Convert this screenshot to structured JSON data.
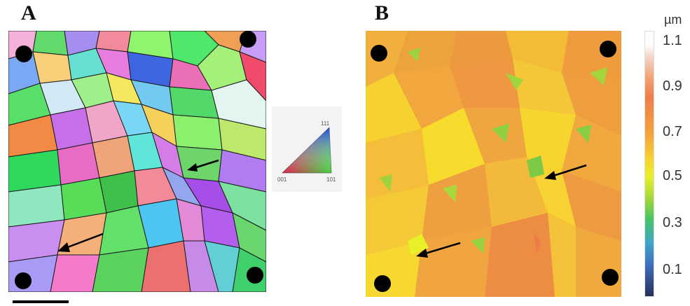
{
  "panels": {
    "a": {
      "label": "A"
    },
    "b": {
      "label": "B"
    }
  },
  "ipf_key": {
    "corner_top": "111",
    "corner_left": "001",
    "corner_right": "101"
  },
  "colorbar": {
    "unit": "µm",
    "ticks": [
      "1.1",
      "0.9",
      "0.7",
      "0.5",
      "0.3",
      "0.1"
    ]
  },
  "colors": {
    "dot": "#000000",
    "arrow": "#000000",
    "scale_bar": "#000000"
  }
}
